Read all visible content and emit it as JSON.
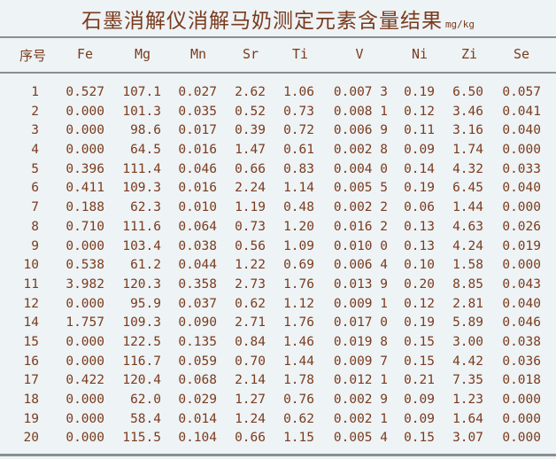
{
  "title": "石墨消解仪消解马奶测定元素含量结果",
  "unit": "mg/kg",
  "columns": [
    "序号",
    "Fe",
    "Mg",
    "Mn",
    "Sr",
    "Ti",
    "V",
    "Ni",
    "Zi",
    "Se"
  ],
  "rows": [
    [
      "1",
      "0.527",
      "107.1",
      "0.027",
      "2.62",
      "1.06",
      "0.007 3",
      "0.19",
      "6.50",
      "0.057"
    ],
    [
      "2",
      "0.000",
      "101.3",
      "0.035",
      "0.52",
      "0.73",
      "0.008 1",
      "0.12",
      "3.46",
      "0.041"
    ],
    [
      "3",
      "0.000",
      "98.6",
      "0.017",
      "0.39",
      "0.72",
      "0.006 9",
      "0.11",
      "3.16",
      "0.040"
    ],
    [
      "4",
      "0.000",
      "64.5",
      "0.016",
      "1.47",
      "0.61",
      "0.002 8",
      "0.09",
      "1.74",
      "0.000"
    ],
    [
      "5",
      "0.396",
      "111.4",
      "0.046",
      "0.66",
      "0.83",
      "0.004 0",
      "0.14",
      "4.32",
      "0.033"
    ],
    [
      "6",
      "0.411",
      "109.3",
      "0.016",
      "2.24",
      "1.14",
      "0.005 5",
      "0.19",
      "6.45",
      "0.040"
    ],
    [
      "7",
      "0.188",
      "62.3",
      "0.010",
      "1.19",
      "0.48",
      "0.002 2",
      "0.06",
      "1.44",
      "0.000"
    ],
    [
      "8",
      "0.710",
      "111.6",
      "0.064",
      "0.73",
      "1.20",
      "0.016 2",
      "0.13",
      "4.63",
      "0.026"
    ],
    [
      "9",
      "0.000",
      "103.4",
      "0.038",
      "0.56",
      "1.09",
      "0.010 0",
      "0.13",
      "4.24",
      "0.019"
    ],
    [
      "10",
      "0.538",
      "61.2",
      "0.044",
      "1.22",
      "0.69",
      "0.006 4",
      "0.10",
      "1.58",
      "0.000"
    ],
    [
      "11",
      "3.982",
      "120.3",
      "0.358",
      "2.73",
      "1.76",
      "0.013 9",
      "0.20",
      "8.85",
      "0.043"
    ],
    [
      "12",
      "0.000",
      "95.9",
      "0.037",
      "0.62",
      "1.12",
      "0.009 1",
      "0.12",
      "2.81",
      "0.040"
    ],
    [
      "14",
      "1.757",
      "109.3",
      "0.090",
      "2.71",
      "1.76",
      "0.017 0",
      "0.19",
      "5.89",
      "0.046"
    ],
    [
      "15",
      "0.000",
      "122.5",
      "0.135",
      "0.84",
      "1.46",
      "0.019 8",
      "0.15",
      "3.00",
      "0.038"
    ],
    [
      "16",
      "0.000",
      "116.7",
      "0.059",
      "0.70",
      "1.44",
      "0.009 7",
      "0.15",
      "4.42",
      "0.036"
    ],
    [
      "17",
      "0.422",
      "120.4",
      "0.068",
      "2.14",
      "1.78",
      "0.012 1",
      "0.21",
      "7.35",
      "0.018"
    ],
    [
      "18",
      "0.000",
      "62.0",
      "0.029",
      "1.27",
      "0.76",
      "0.002 9",
      "0.09",
      "1.23",
      "0.000"
    ],
    [
      "19",
      "0.000",
      "58.4",
      "0.014",
      "1.24",
      "0.62",
      "0.002 1",
      "0.09",
      "1.64",
      "0.000"
    ],
    [
      "20",
      "0.000",
      "115.5",
      "0.104",
      "0.66",
      "1.15",
      "0.005 4",
      "0.15",
      "3.07",
      "0.000"
    ]
  ],
  "colors": {
    "text": "#7a3b1e",
    "background": "#eef3f5",
    "rule": "#8a8f92"
  }
}
